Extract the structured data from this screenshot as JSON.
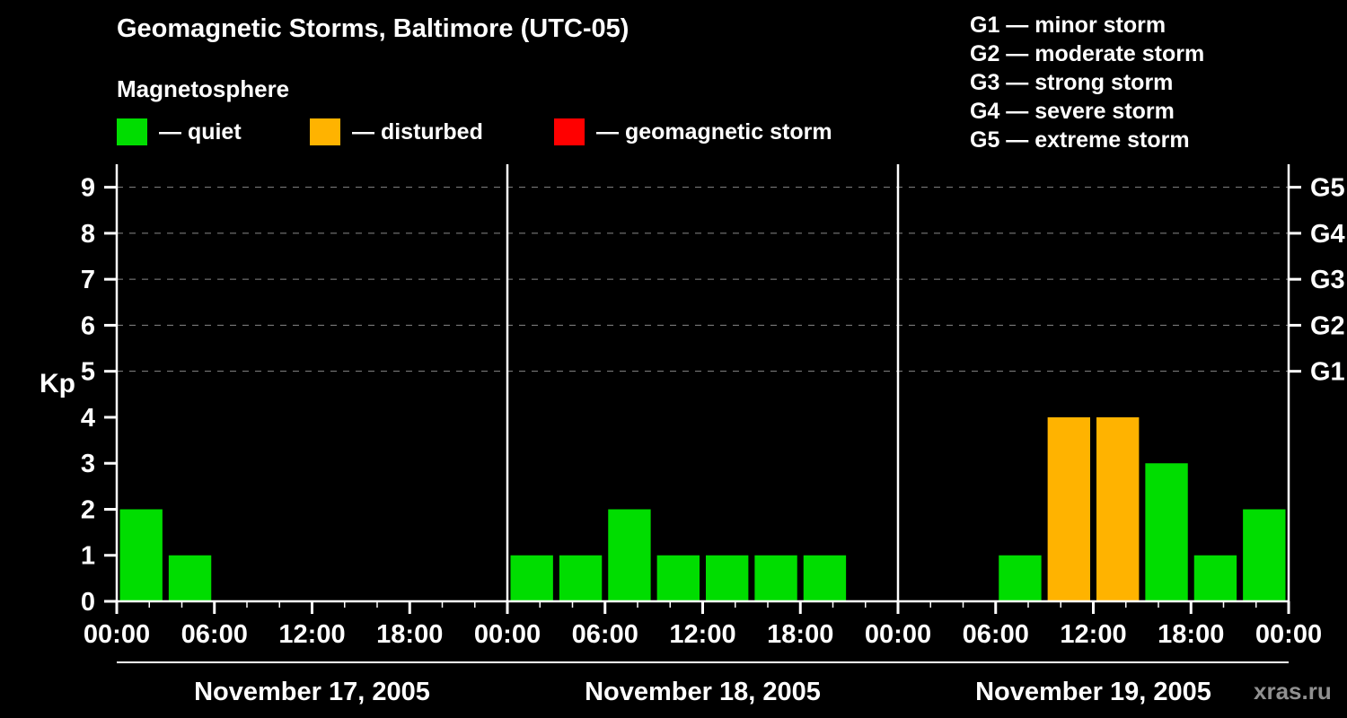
{
  "title": "Geomagnetic Storms, Baltimore (UTC-05)",
  "subtitle": "Magnetosphere",
  "legend": {
    "quiet_label": "— quiet",
    "disturbed_label": "— disturbed",
    "storm_label": "— geomagnetic storm"
  },
  "g_scale_legend": [
    "G1 — minor storm",
    "G2 — moderate storm",
    "G3 — strong storm",
    "G4 — severe storm",
    "G5 — extreme storm"
  ],
  "watermark": "xras.ru",
  "colors": {
    "background": "#000000",
    "text": "#ffffff",
    "quiet": "#00dd00",
    "disturbed": "#ffb300",
    "storm": "#ff0000",
    "gridline": "#888888",
    "watermark": "#909090"
  },
  "chart_data": {
    "type": "bar",
    "title": "Geomagnetic Storms, Baltimore (UTC-05)",
    "ylabel": "Kp",
    "ylim": [
      0,
      9.5
    ],
    "y_ticks": [
      0,
      1,
      2,
      3,
      4,
      5,
      6,
      7,
      8,
      9
    ],
    "gridlines_y": [
      5,
      6,
      7,
      8,
      9
    ],
    "grid": "dashed horizontal lines at storm levels G1–G5",
    "right_axis_labels": [
      {
        "label": "G1",
        "kp": 5
      },
      {
        "label": "G2",
        "kp": 6
      },
      {
        "label": "G3",
        "kp": 7
      },
      {
        "label": "G4",
        "kp": 8
      },
      {
        "label": "G5",
        "kp": 9
      }
    ],
    "x_tick_labels_per_day": [
      "00:00",
      "06:00",
      "12:00",
      "18:00"
    ],
    "x_axis_end_label": "00:00",
    "interval_hours": 3,
    "color_rule": {
      "quiet": "Kp <= 3",
      "disturbed": "Kp == 4",
      "storm": "Kp >= 5"
    },
    "days": [
      {
        "date": "November 17, 2005",
        "kp": [
          2,
          1,
          0,
          0,
          0,
          0,
          0,
          0
        ]
      },
      {
        "date": "November 18, 2005",
        "kp": [
          1,
          1,
          2,
          1,
          1,
          1,
          1,
          0
        ]
      },
      {
        "date": "November 19, 2005",
        "kp": [
          0,
          0,
          1,
          4,
          4,
          3,
          1,
          2
        ]
      }
    ]
  }
}
